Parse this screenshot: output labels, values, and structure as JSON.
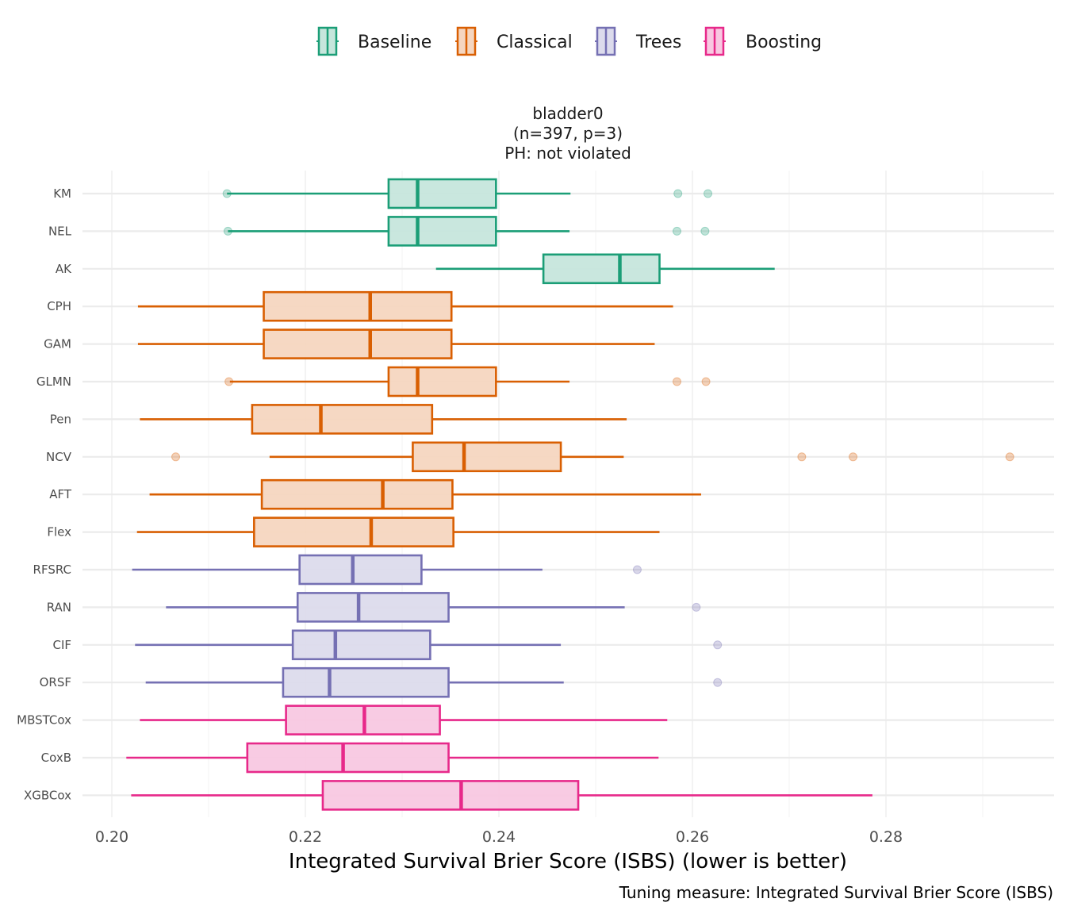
{
  "chart_data": {
    "type": "boxplot",
    "orientation": "horizontal",
    "facet_title": [
      "bladder0",
      "(n=397, p=3)",
      "PH: not violated"
    ],
    "xlabel": "Integrated Survival Brier Score (ISBS) (lower is better)",
    "ylabel": "",
    "caption": "Tuning measure: Integrated Survival Brier Score (ISBS)",
    "xlim": [
      0.187,
      0.2885
    ],
    "xticks": [
      0.2,
      0.22,
      0.24,
      0.26,
      0.28
    ],
    "xtick_labels": [
      "0.20",
      "0.22",
      "0.24",
      "0.26",
      "0.28"
    ],
    "grid": true,
    "legend": {
      "position": "top",
      "entries": [
        {
          "name": "Baseline",
          "line": "#1b9e77",
          "fill": "#c6e6dc"
        },
        {
          "name": "Classical",
          "line": "#d95f02",
          "fill": "#f5d6c0"
        },
        {
          "name": "Trees",
          "line": "#7570b3",
          "fill": "#dcdbec"
        },
        {
          "name": "Boosting",
          "line": "#e7298a",
          "fill": "#f8c8e1"
        }
      ]
    },
    "categories": [
      "KM",
      "NEL",
      "AK",
      "CPH",
      "GAM",
      "GLMN",
      "Pen",
      "NCV",
      "AFT",
      "Flex",
      "RFSRC",
      "RAN",
      "CIF",
      "ORSF",
      "MBSTCox",
      "CoxB",
      "XGBCox"
    ],
    "boxes": [
      {
        "label": "KM",
        "group": "Baseline",
        "whisker_low": 0.2119,
        "q1": 0.2286,
        "median": 0.2316,
        "q3": 0.2397,
        "whisker_high": 0.2474,
        "outliers": [
          0.2119,
          0.2585,
          0.2616
        ]
      },
      {
        "label": "NEL",
        "group": "Baseline",
        "whisker_low": 0.212,
        "q1": 0.2286,
        "median": 0.2316,
        "q3": 0.2397,
        "whisker_high": 0.2473,
        "outliers": [
          0.212,
          0.2584,
          0.2613
        ]
      },
      {
        "label": "AK",
        "group": "Baseline",
        "whisker_low": 0.2335,
        "q1": 0.2446,
        "median": 0.2525,
        "q3": 0.2566,
        "whisker_high": 0.2685,
        "outliers": []
      },
      {
        "label": "CPH",
        "group": "Classical",
        "whisker_low": 0.2027,
        "q1": 0.2157,
        "median": 0.2267,
        "q3": 0.2351,
        "whisker_high": 0.258,
        "outliers": []
      },
      {
        "label": "GAM",
        "group": "Classical",
        "whisker_low": 0.2027,
        "q1": 0.2157,
        "median": 0.2267,
        "q3": 0.2351,
        "whisker_high": 0.2561,
        "outliers": []
      },
      {
        "label": "GLMN",
        "group": "Classical",
        "whisker_low": 0.2122,
        "q1": 0.2286,
        "median": 0.2316,
        "q3": 0.2397,
        "whisker_high": 0.2473,
        "outliers": [
          0.2121,
          0.2584,
          0.2614
        ]
      },
      {
        "label": "Pen",
        "group": "Classical",
        "whisker_low": 0.2029,
        "q1": 0.2145,
        "median": 0.2216,
        "q3": 0.2331,
        "whisker_high": 0.2532,
        "outliers": []
      },
      {
        "label": "NCV",
        "group": "Classical",
        "whisker_low": 0.2163,
        "q1": 0.2311,
        "median": 0.2364,
        "q3": 0.2464,
        "whisker_high": 0.2529,
        "outliers": [
          0.2066,
          0.2713,
          0.2766,
          0.2928
        ]
      },
      {
        "label": "AFT",
        "group": "Classical",
        "whisker_low": 0.2039,
        "q1": 0.2155,
        "median": 0.228,
        "q3": 0.2352,
        "whisker_high": 0.2609,
        "outliers": []
      },
      {
        "label": "Flex",
        "group": "Classical",
        "whisker_low": 0.2026,
        "q1": 0.2147,
        "median": 0.2268,
        "q3": 0.2353,
        "whisker_high": 0.2566,
        "outliers": []
      },
      {
        "label": "RFSRC",
        "group": "Trees",
        "whisker_low": 0.2021,
        "q1": 0.2194,
        "median": 0.2249,
        "q3": 0.232,
        "whisker_high": 0.2445,
        "outliers": [
          0.2543
        ]
      },
      {
        "label": "RAN",
        "group": "Trees",
        "whisker_low": 0.2056,
        "q1": 0.2192,
        "median": 0.2255,
        "q3": 0.2348,
        "whisker_high": 0.253,
        "outliers": [
          0.2604
        ]
      },
      {
        "label": "CIF",
        "group": "Trees",
        "whisker_low": 0.2024,
        "q1": 0.2187,
        "median": 0.2231,
        "q3": 0.2329,
        "whisker_high": 0.2464,
        "outliers": [
          0.2626
        ]
      },
      {
        "label": "ORSF",
        "group": "Trees",
        "whisker_low": 0.2035,
        "q1": 0.2177,
        "median": 0.2225,
        "q3": 0.2348,
        "whisker_high": 0.2467,
        "outliers": [
          0.2626
        ]
      },
      {
        "label": "MBSTCox",
        "group": "Boosting",
        "whisker_low": 0.2029,
        "q1": 0.218,
        "median": 0.2261,
        "q3": 0.2339,
        "whisker_high": 0.2574,
        "outliers": []
      },
      {
        "label": "CoxB",
        "group": "Boosting",
        "whisker_low": 0.2015,
        "q1": 0.214,
        "median": 0.2239,
        "q3": 0.2348,
        "whisker_high": 0.2565,
        "outliers": []
      },
      {
        "label": "XGBCox",
        "group": "Boosting",
        "whisker_low": 0.202,
        "q1": 0.2218,
        "median": 0.2361,
        "q3": 0.2482,
        "whisker_high": 0.2786,
        "outliers": []
      }
    ]
  }
}
